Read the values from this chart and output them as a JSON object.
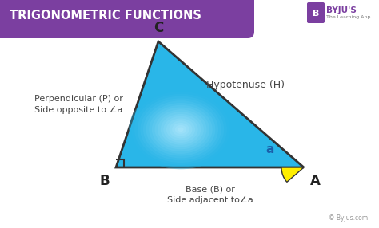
{
  "title": "TRIGONOMETRIC FUNCTIONS",
  "title_bg_color": "#7B3FA0",
  "title_text_color": "#FFFFFF",
  "bg_color": "#FFFFFF",
  "triangle_fill": "#29B6E8",
  "triangle_highlight": "#B0E8FF",
  "triangle_edge_color": "#333333",
  "angle_fill": "#FFEE00",
  "label_C": "C",
  "label_B": "B",
  "label_A": "A",
  "label_a": "a",
  "hypotenuse_label": "Hypotenuse (H)",
  "perpendicular_label": "Perpendicular (P) or\nSide opposite to ∠a",
  "base_label": "Base (B) or\nSide adjacent to∠a",
  "copyright": "© Byjus.com",
  "byju_logo_text": "BYJU'S",
  "byju_subtext": "The Learning App",
  "fig_width": 4.74,
  "fig_height": 2.86,
  "dpi": 100
}
